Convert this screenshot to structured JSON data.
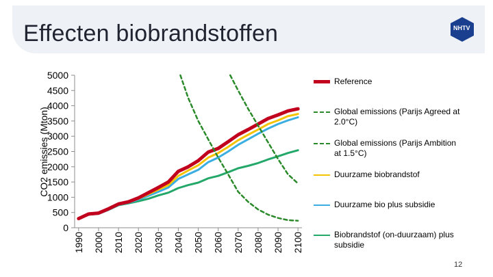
{
  "slide": {
    "title": "Effecten biobrandstoffen",
    "logo_text": "NHTV",
    "page_number": "12"
  },
  "chart_data": {
    "type": "line",
    "title": "",
    "xlabel": "",
    "ylabel": "CO2 emissies (Mton)",
    "xlim": [
      1988,
      2102
    ],
    "ylim": [
      0,
      5000
    ],
    "x_ticks": [
      1990,
      2000,
      2010,
      2020,
      2030,
      2040,
      2050,
      2060,
      2070,
      2080,
      2090,
      2100
    ],
    "y_ticks": [
      0,
      500,
      1000,
      1500,
      2000,
      2500,
      3000,
      3500,
      4000,
      4500,
      5000
    ],
    "grid": false,
    "legend_position": "right",
    "series": [
      {
        "name": "Reference",
        "color": "#c0001d",
        "dash": false,
        "width": 5,
        "x": [
          1990,
          1995,
          2000,
          2005,
          2010,
          2015,
          2020,
          2025,
          2030,
          2035,
          2040,
          2045,
          2050,
          2055,
          2060,
          2065,
          2070,
          2075,
          2080,
          2085,
          2090,
          2095,
          2100
        ],
        "y": [
          300,
          450,
          480,
          620,
          780,
          850,
          980,
          1150,
          1320,
          1500,
          1850,
          2000,
          2200,
          2480,
          2600,
          2820,
          3050,
          3220,
          3400,
          3580,
          3700,
          3830,
          3900
        ]
      },
      {
        "name": "Global emissions (Parijs Agreed at 2.0°C)",
        "color": "#2a8a2a",
        "dash": true,
        "width": 2.5,
        "x": [
          2041,
          2045,
          2050,
          2055,
          2060,
          2065,
          2070,
          2075,
          2080,
          2085,
          2090,
          2095,
          2100
        ],
        "y": [
          5000,
          4250,
          3500,
          2900,
          2300,
          1750,
          1180,
          850,
          600,
          430,
          320,
          250,
          230
        ]
      },
      {
        "name": "Global emissions (Parijs Ambition at 1.5°C)",
        "color": "#2a8a2a",
        "dash": true,
        "width": 2.5,
        "x": [
          2066,
          2070,
          2075,
          2080,
          2085,
          2090,
          2095,
          2100
        ],
        "y": [
          5000,
          4500,
          3900,
          3350,
          2800,
          2250,
          1750,
          1450
        ]
      },
      {
        "name": "Duurzame biobrandstof",
        "color": "#f5c200",
        "dash": false,
        "width": 3,
        "x": [
          1990,
          1995,
          2000,
          2005,
          2010,
          2015,
          2020,
          2025,
          2030,
          2035,
          2040,
          2045,
          2050,
          2055,
          2060,
          2065,
          2070,
          2075,
          2080,
          2085,
          2090,
          2095,
          2100
        ],
        "y": [
          300,
          440,
          470,
          600,
          760,
          830,
          950,
          1100,
          1250,
          1400,
          1700,
          1880,
          2050,
          2300,
          2450,
          2650,
          2870,
          3050,
          3220,
          3400,
          3520,
          3660,
          3730
        ]
      },
      {
        "name": "Duurzame bio plus subsidie",
        "color": "#3aaee0",
        "dash": false,
        "width": 3,
        "x": [
          1990,
          1995,
          2000,
          2005,
          2010,
          2015,
          2020,
          2025,
          2030,
          2035,
          2040,
          2045,
          2050,
          2055,
          2060,
          2065,
          2070,
          2075,
          2080,
          2085,
          2090,
          2095,
          2100
        ],
        "y": [
          300,
          430,
          460,
          590,
          750,
          820,
          920,
          1050,
          1180,
          1320,
          1600,
          1750,
          1900,
          2150,
          2300,
          2500,
          2720,
          2900,
          3080,
          3250,
          3400,
          3520,
          3620
        ]
      },
      {
        "name": "Biobrandstof (on-duurzaam) plus subsidie",
        "color": "#23a86a",
        "dash": false,
        "width": 3,
        "x": [
          1990,
          1995,
          2000,
          2005,
          2010,
          2015,
          2020,
          2025,
          2030,
          2035,
          2040,
          2045,
          2050,
          2055,
          2060,
          2065,
          2070,
          2075,
          2080,
          2085,
          2090,
          2095,
          2100
        ],
        "y": [
          300,
          430,
          460,
          590,
          740,
          800,
          870,
          950,
          1060,
          1150,
          1300,
          1400,
          1480,
          1620,
          1700,
          1820,
          1950,
          2030,
          2120,
          2240,
          2340,
          2450,
          2540
        ]
      }
    ]
  }
}
